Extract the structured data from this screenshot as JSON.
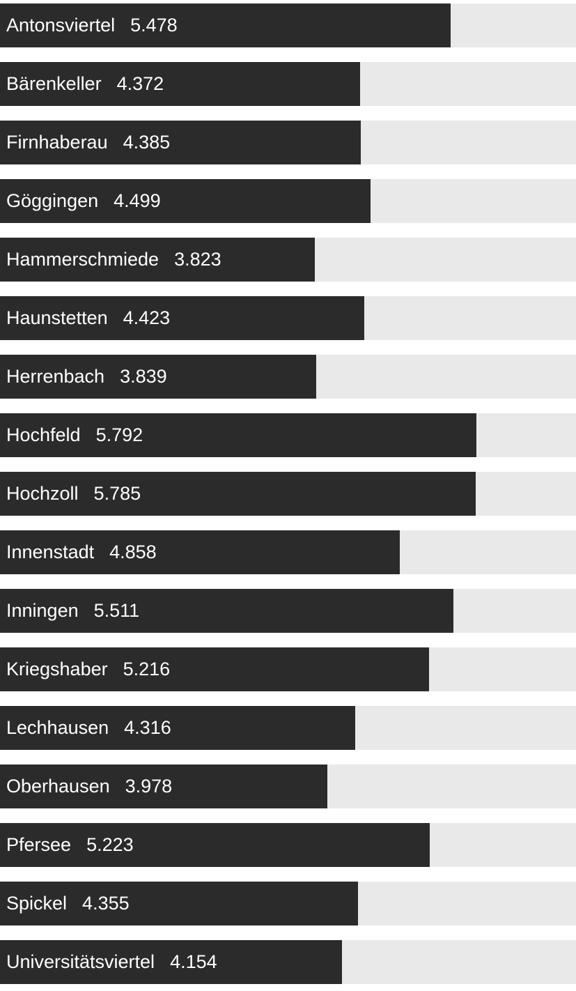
{
  "chart_data": {
    "type": "bar",
    "orientation": "horizontal",
    "title": "",
    "xlabel": "",
    "ylabel": "",
    "xlim": [
      0,
      7000
    ],
    "grid": false,
    "legend": false,
    "bar_color": "#2b2b2b",
    "track_color": "#e9e9e9",
    "text_color": "#ffffff",
    "categories": [
      "Antonsviertel",
      "Bärenkeller",
      "Firnhaberau",
      "Göggingen",
      "Hammerschmiede",
      "Haunstetten",
      "Herrenbach",
      "Hochfeld",
      "Hochzoll",
      "Innenstadt",
      "Inningen",
      "Kriegshaber",
      "Lechhausen",
      "Oberhausen",
      "Pfersee",
      "Spickel",
      "Universitätsviertel"
    ],
    "values": [
      5478,
      4372,
      4385,
      4499,
      3823,
      4423,
      3839,
      5792,
      5785,
      4858,
      5511,
      5216,
      4316,
      3978,
      5223,
      4355,
      4154
    ],
    "value_labels": [
      "5.478",
      "4.372",
      "4.385",
      "4.499",
      "3.823",
      "4.423",
      "3.839",
      "5.792",
      "5.785",
      "4.858",
      "5.511",
      "5.216",
      "4.316",
      "3.978",
      "5.223",
      "4.355",
      "4.154"
    ]
  }
}
